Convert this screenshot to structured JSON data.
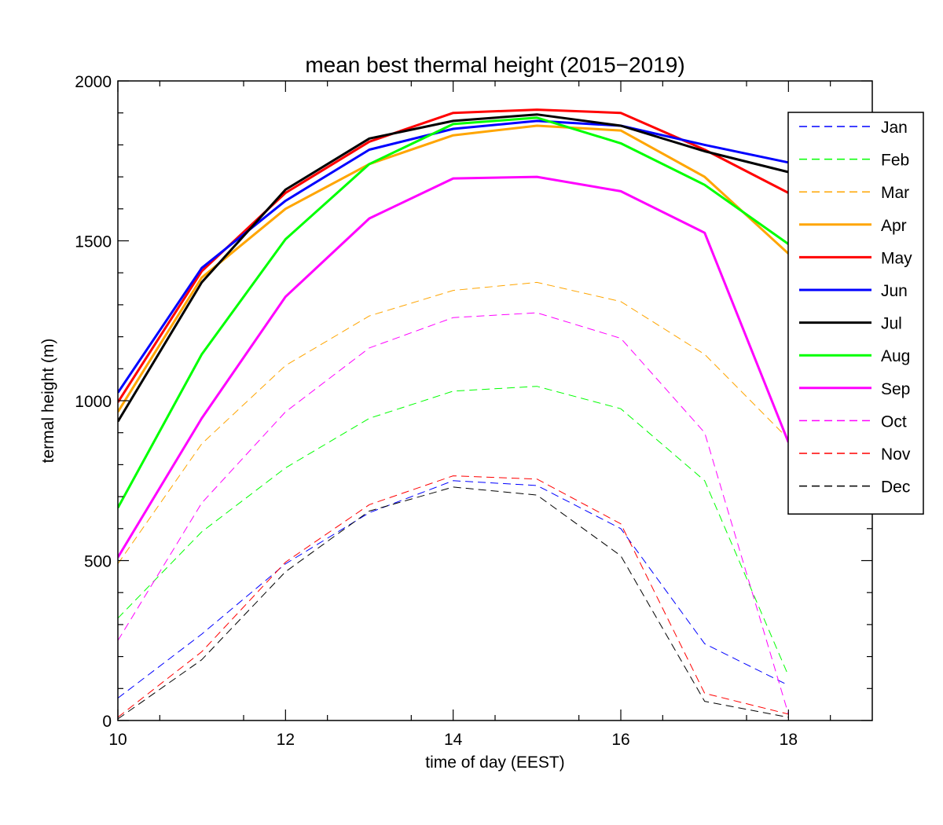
{
  "chart_data": {
    "type": "line",
    "title": "mean best thermal height (2015−2019)",
    "xlabel": "time of day (EEST)",
    "ylabel": "termal height (m)",
    "xlim": [
      10,
      19
    ],
    "ylim": [
      0,
      2000
    ],
    "xticks": [
      10,
      12,
      14,
      16,
      18
    ],
    "xtick_labels": [
      "10",
      "12",
      "14",
      "16",
      "18"
    ],
    "yticks": [
      0,
      500,
      1000,
      1500,
      2000
    ],
    "ytick_labels": [
      "0",
      "500",
      "1000",
      "1500",
      "2000"
    ],
    "grid": false,
    "legend_position": "top-right",
    "x": [
      10,
      11,
      12,
      13,
      14,
      15,
      16,
      17,
      18
    ],
    "series": [
      {
        "name": "Jan",
        "color": "#0000ff",
        "dashed": true,
        "values": [
          70,
          270,
          490,
          650,
          750,
          735,
          600,
          240,
          110
        ]
      },
      {
        "name": "Feb",
        "color": "#00ff00",
        "dashed": true,
        "values": [
          320,
          590,
          790,
          945,
          1030,
          1045,
          975,
          750,
          140
        ]
      },
      {
        "name": "Mar",
        "color": "#ffa500",
        "dashed": true,
        "values": [
          490,
          865,
          1110,
          1265,
          1345,
          1370,
          1310,
          1145,
          880
        ]
      },
      {
        "name": "Apr",
        "color": "#ffa500",
        "dashed": false,
        "values": [
          965,
          1385,
          1600,
          1740,
          1830,
          1860,
          1845,
          1700,
          1460
        ]
      },
      {
        "name": "May",
        "color": "#ff0000",
        "dashed": false,
        "values": [
          995,
          1405,
          1650,
          1810,
          1900,
          1910,
          1900,
          1785,
          1650
        ]
      },
      {
        "name": "Jun",
        "color": "#0000ff",
        "dashed": false,
        "values": [
          1025,
          1415,
          1625,
          1785,
          1850,
          1875,
          1860,
          1800,
          1745
        ]
      },
      {
        "name": "Jul",
        "color": "#000000",
        "dashed": false,
        "values": [
          935,
          1370,
          1660,
          1820,
          1875,
          1895,
          1860,
          1780,
          1715
        ]
      },
      {
        "name": "Aug",
        "color": "#00ff00",
        "dashed": false,
        "values": [
          665,
          1145,
          1505,
          1740,
          1865,
          1885,
          1805,
          1675,
          1490
        ]
      },
      {
        "name": "Sep",
        "color": "#ff00ff",
        "dashed": false,
        "values": [
          510,
          945,
          1325,
          1570,
          1695,
          1700,
          1655,
          1525,
          870
        ]
      },
      {
        "name": "Oct",
        "color": "#ff00ff",
        "dashed": true,
        "values": [
          250,
          680,
          965,
          1165,
          1260,
          1275,
          1195,
          900,
          20
        ]
      },
      {
        "name": "Nov",
        "color": "#ff0000",
        "dashed": true,
        "values": [
          10,
          215,
          495,
          675,
          765,
          755,
          615,
          85,
          20
        ]
      },
      {
        "name": "Dec",
        "color": "#000000",
        "dashed": true,
        "values": [
          5,
          190,
          465,
          655,
          730,
          705,
          515,
          60,
          10
        ]
      }
    ]
  }
}
